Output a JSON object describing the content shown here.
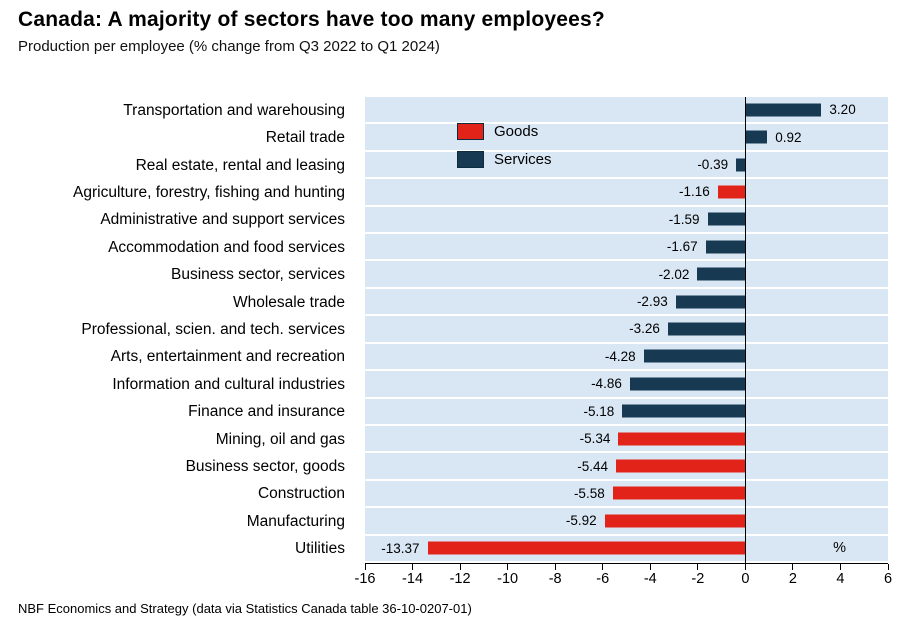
{
  "title": "Canada: A majority of sectors have too many employees?",
  "subtitle": "Production per employee (% change from Q3 2022 to Q1 2024)",
  "footer": "NBF Economics and Strategy (data via Statistics Canada table 36-10-0207-01)",
  "pct_label": "%",
  "legend": [
    {
      "label": "Goods",
      "color": "#e2231a"
    },
    {
      "label": "Services",
      "color": "#173a52"
    }
  ],
  "colors": {
    "goods": "#e2231a",
    "services": "#173a52",
    "plot_background": "#d9e7f5",
    "gridline": "#ffffff",
    "axis": "#000000"
  },
  "chart_data": {
    "type": "bar",
    "orientation": "horizontal",
    "title": "Canada: A majority of sectors have too many employees?",
    "subtitle": "Production per employee (% change from Q3 2022 to Q1 2024)",
    "xlabel": "%",
    "xlim": [
      -16,
      6
    ],
    "xticks": [
      "-16",
      "-14",
      "-12",
      "-10",
      "-8",
      "-6",
      "-4",
      "-2",
      "0",
      "2",
      "4",
      "6"
    ],
    "xtick_values": [
      -16,
      -14,
      -12,
      -10,
      -8,
      -6,
      -4,
      -2,
      0,
      2,
      4,
      6
    ],
    "grid": "horizontal-white-separators",
    "legend_position": "inside-top-left",
    "categories": [
      "Transportation and warehousing",
      "Retail trade",
      "Real estate, rental and leasing",
      "Agriculture, forestry, fishing and hunting",
      "Administrative and support services",
      "Accommodation and food services",
      "Business sector, services",
      "Wholesale trade",
      "Professional, scien. and tech. services",
      "Arts, entertainment and recreation",
      "Information and cultural industries",
      "Finance and insurance",
      "Mining, oil and gas",
      "Business sector, goods",
      "Construction",
      "Manufacturing",
      "Utilities"
    ],
    "values": [
      3.2,
      0.92,
      -0.39,
      -1.16,
      -1.59,
      -1.67,
      -2.02,
      -2.93,
      -3.26,
      -4.28,
      -4.86,
      -5.18,
      -5.34,
      -5.44,
      -5.58,
      -5.92,
      -13.37
    ],
    "value_labels": [
      "3.20",
      "0.92",
      "-0.39",
      "-1.16",
      "-1.59",
      "-1.67",
      "-2.02",
      "-2.93",
      "-3.26",
      "-4.28",
      "-4.86",
      "-5.18",
      "-5.34",
      "-5.44",
      "-5.58",
      "-5.92",
      "-13.37"
    ],
    "groups": [
      "Services",
      "Services",
      "Services",
      "Goods",
      "Services",
      "Services",
      "Services",
      "Services",
      "Services",
      "Services",
      "Services",
      "Services",
      "Goods",
      "Goods",
      "Goods",
      "Goods",
      "Goods"
    ],
    "group_colors": {
      "Goods": "#e2231a",
      "Services": "#173a52"
    }
  }
}
